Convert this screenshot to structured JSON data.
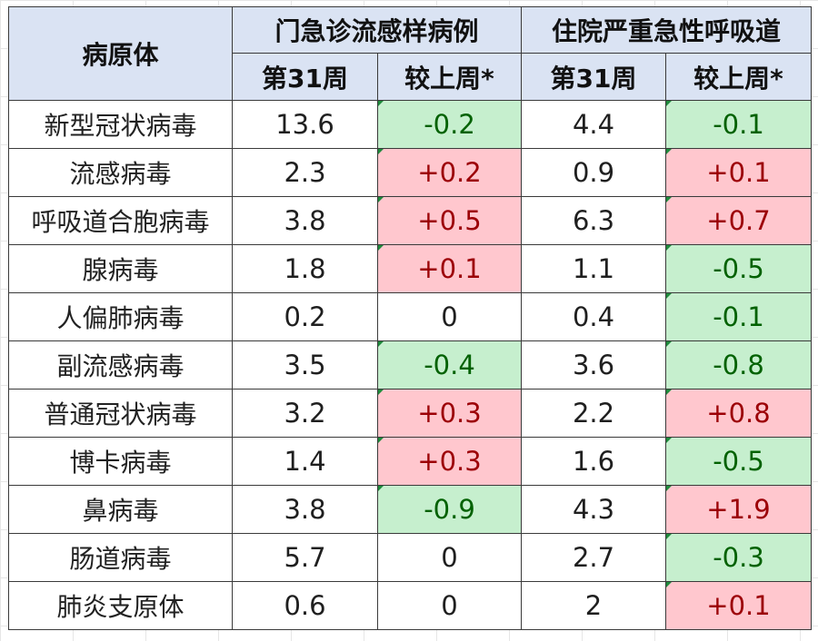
{
  "header": {
    "pathogen": "病原体",
    "group_outpatient": "门急诊流感样病例",
    "group_inpatient": "住院严重急性呼吸道",
    "week_label": "第31周",
    "change_label": "较上周*"
  },
  "rows": [
    {
      "name": "新型冠状病毒",
      "op_week": "13.6",
      "op_change": "-0.2",
      "op_sign": "neg",
      "ip_week": "4.4",
      "ip_change": "-0.1",
      "ip_sign": "neg"
    },
    {
      "name": "流感病毒",
      "op_week": "2.3",
      "op_change": "+0.2",
      "op_sign": "pos",
      "ip_week": "0.9",
      "ip_change": "+0.1",
      "ip_sign": "pos"
    },
    {
      "name": "呼吸道合胞病毒",
      "op_week": "3.8",
      "op_change": "+0.5",
      "op_sign": "pos",
      "ip_week": "6.3",
      "ip_change": "+0.7",
      "ip_sign": "pos"
    },
    {
      "name": "腺病毒",
      "op_week": "1.8",
      "op_change": "+0.1",
      "op_sign": "pos",
      "ip_week": "1.1",
      "ip_change": "-0.5",
      "ip_sign": "neg"
    },
    {
      "name": "人偏肺病毒",
      "op_week": "0.2",
      "op_change": "0",
      "op_sign": "zero",
      "ip_week": "0.4",
      "ip_change": "-0.1",
      "ip_sign": "neg"
    },
    {
      "name": "副流感病毒",
      "op_week": "3.5",
      "op_change": "-0.4",
      "op_sign": "neg",
      "ip_week": "3.6",
      "ip_change": "-0.8",
      "ip_sign": "neg"
    },
    {
      "name": "普通冠状病毒",
      "op_week": "3.2",
      "op_change": "+0.3",
      "op_sign": "pos",
      "ip_week": "2.2",
      "ip_change": "+0.8",
      "ip_sign": "pos"
    },
    {
      "name": "博卡病毒",
      "op_week": "1.4",
      "op_change": "+0.3",
      "op_sign": "pos",
      "ip_week": "1.6",
      "ip_change": "-0.5",
      "ip_sign": "neg"
    },
    {
      "name": "鼻病毒",
      "op_week": "3.8",
      "op_change": "-0.9",
      "op_sign": "neg",
      "ip_week": "4.3",
      "ip_change": "+1.9",
      "ip_sign": "pos"
    },
    {
      "name": "肠道病毒",
      "op_week": "5.7",
      "op_change": "0",
      "op_sign": "zero",
      "ip_week": "2.7",
      "ip_change": "-0.3",
      "ip_sign": "neg"
    },
    {
      "name": "肺炎支原体",
      "op_week": "0.6",
      "op_change": "0",
      "op_sign": "zero",
      "ip_week": "2",
      "ip_change": "+0.1",
      "ip_sign": "pos"
    }
  ],
  "colors": {
    "header_bg": "#dae3f3",
    "increase_bg": "#ffc7ce",
    "increase_text": "#9c0006",
    "decrease_bg": "#c6efce",
    "decrease_text": "#006100",
    "border": "#3a3a3a"
  }
}
